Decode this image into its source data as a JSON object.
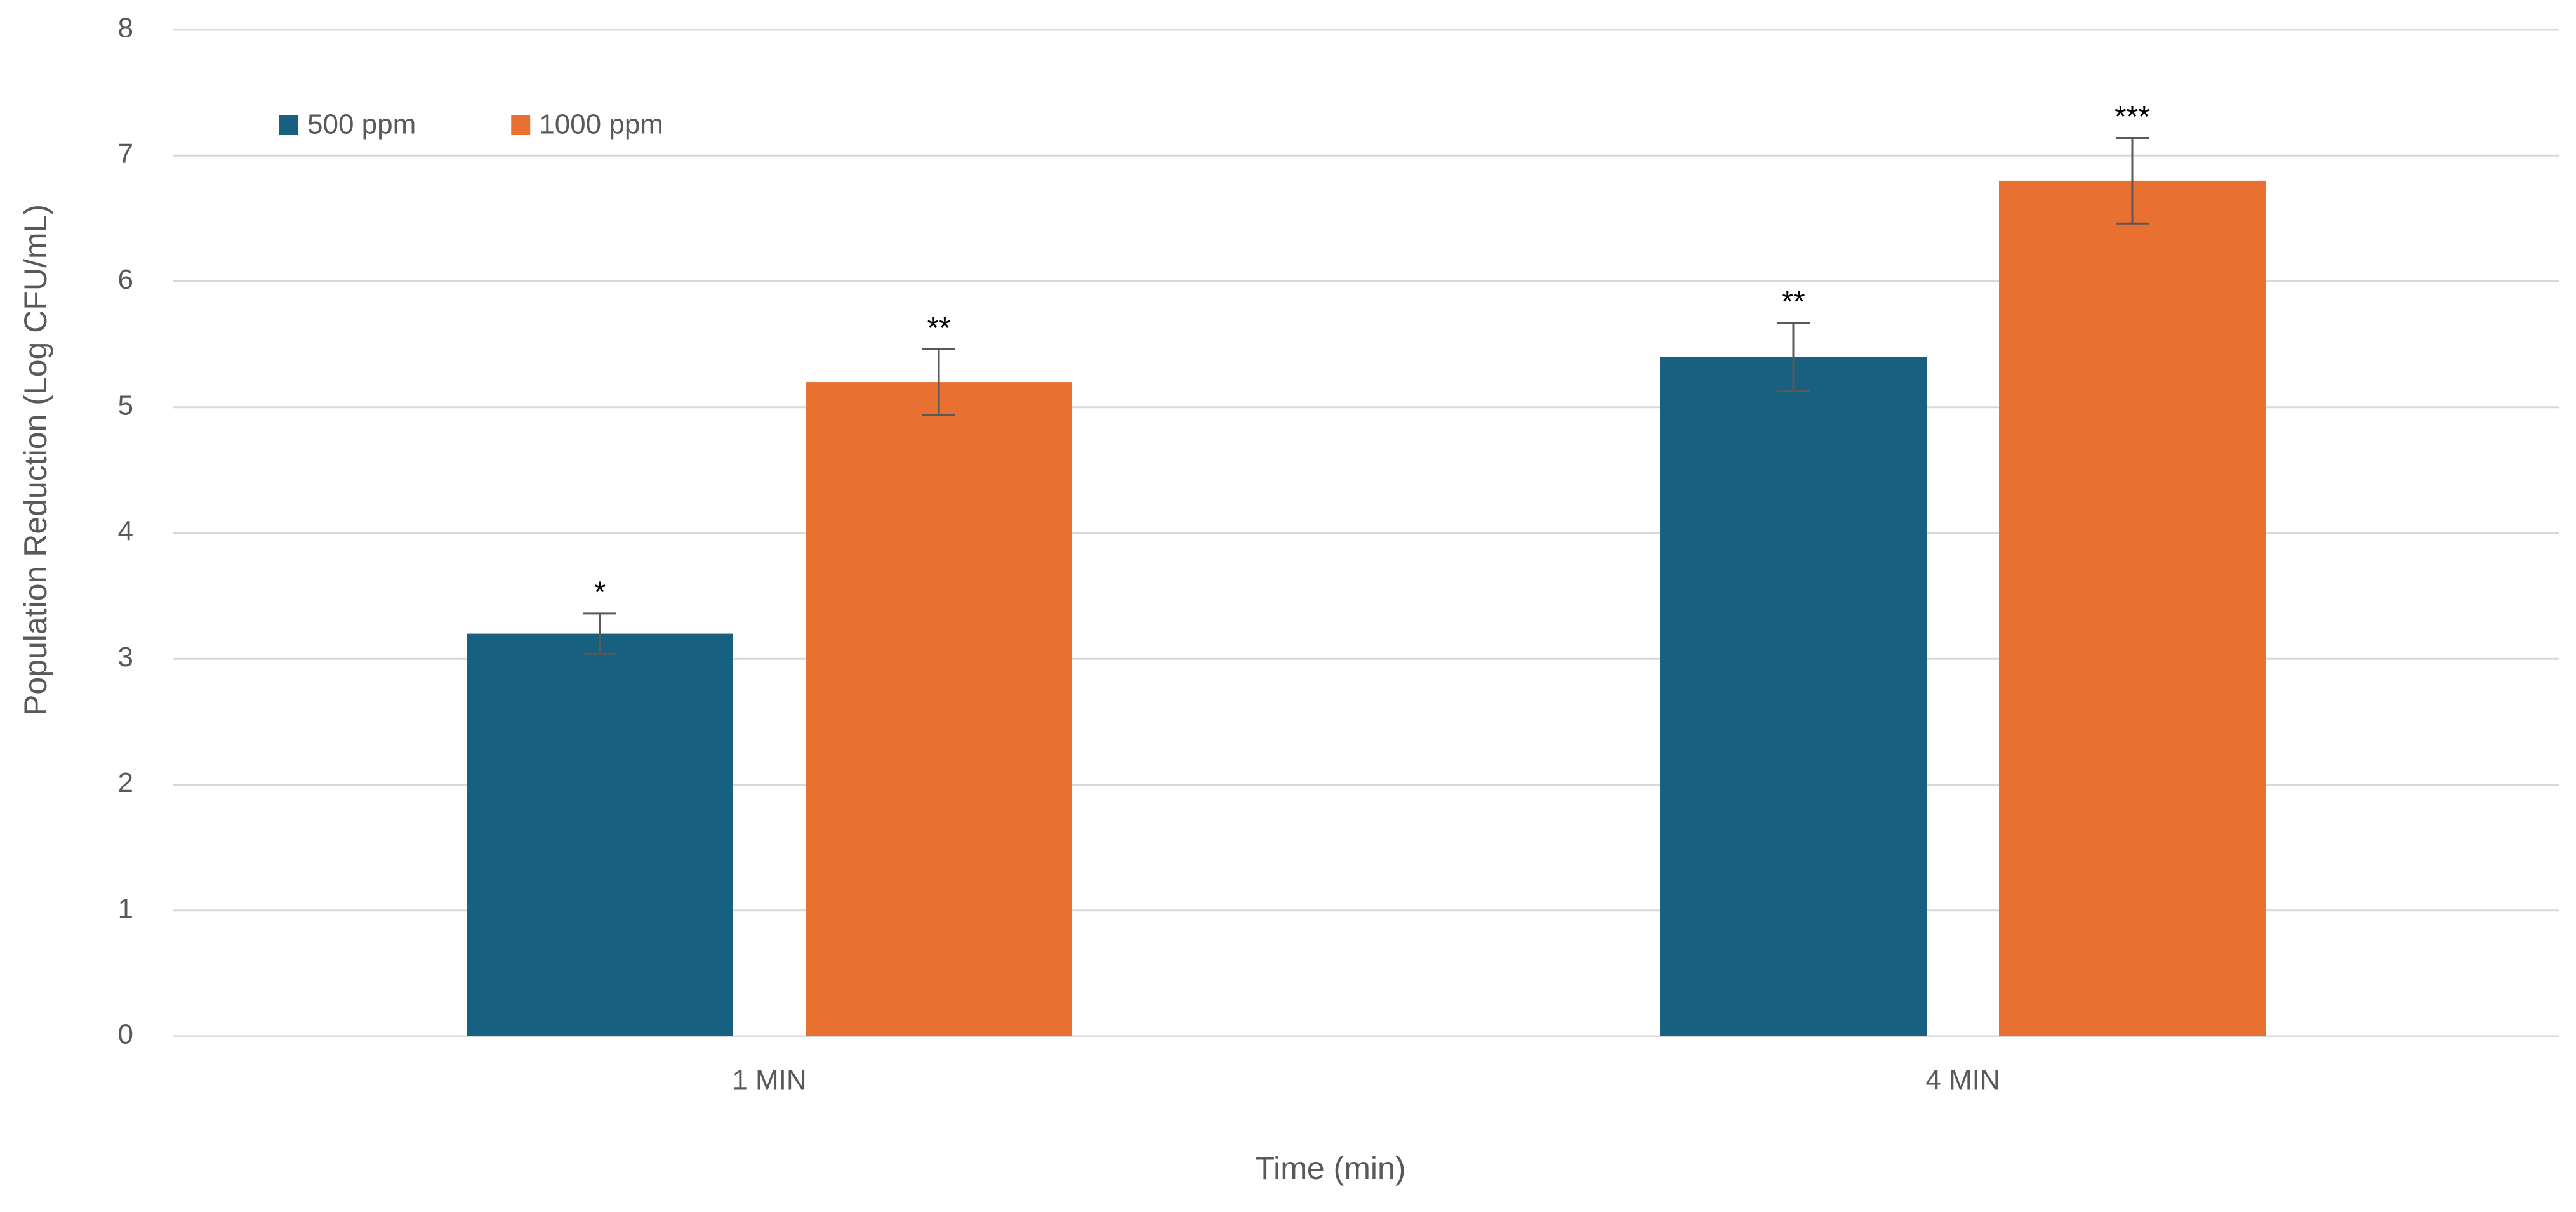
{
  "chart_data": {
    "type": "bar",
    "x_label": "Time (min)",
    "y_label": "Population Reduction (Log CFU/mL)",
    "categories": [
      "1 MIN",
      "4 MIN"
    ],
    "series": [
      {
        "name": "500 ppm",
        "color": "#17607f",
        "values": [
          3.2,
          5.4
        ],
        "errors": [
          0.16,
          0.27
        ],
        "annotations": [
          "*",
          "**"
        ]
      },
      {
        "name": "1000 ppm",
        "color": "#e87132",
        "values": [
          5.2,
          6.8
        ],
        "errors": [
          0.26,
          0.34
        ],
        "annotations": [
          "**",
          "***"
        ]
      }
    ],
    "ylim": [
      0,
      8
    ],
    "yticks": [
      0,
      1,
      2,
      3,
      4,
      5,
      6,
      7,
      8
    ],
    "grid": true,
    "legend": "top-left"
  }
}
